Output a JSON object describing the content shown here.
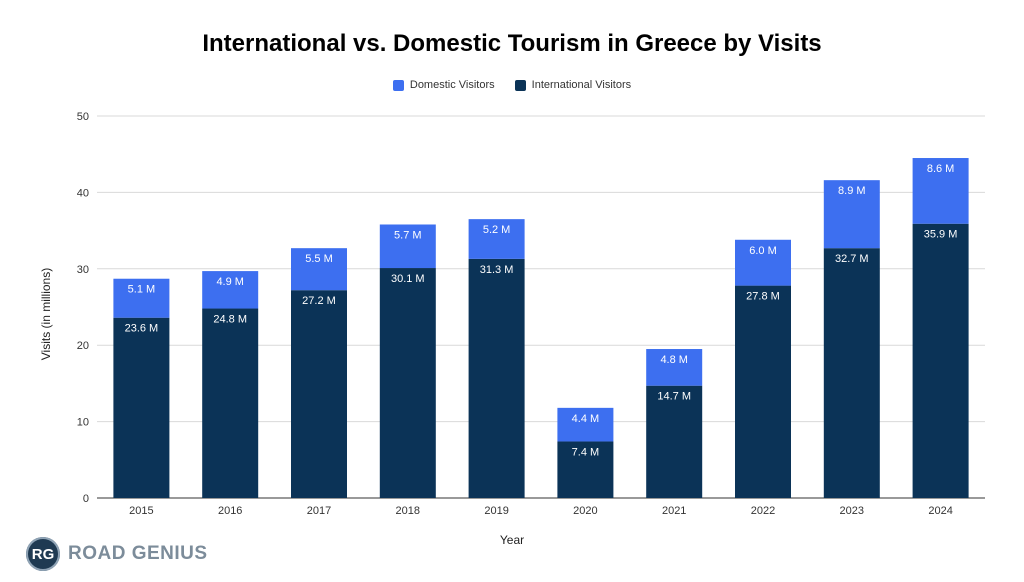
{
  "chart_data": {
    "type": "bar",
    "stacked": true,
    "title": "International vs. Domestic Tourism in Greece by Visits",
    "xlabel": "Year",
    "ylabel": "Visits (in millions)",
    "ylim": [
      0,
      50
    ],
    "yticks": [
      0,
      10,
      20,
      30,
      40,
      50
    ],
    "grid": true,
    "legend_placement": "top",
    "categories": [
      "2015",
      "2016",
      "2017",
      "2018",
      "2019",
      "2020",
      "2021",
      "2022",
      "2023",
      "2024"
    ],
    "series": [
      {
        "name": "International Visitors",
        "color": "#0b3357",
        "values": [
          23.6,
          24.8,
          27.2,
          30.1,
          31.3,
          7.4,
          14.7,
          27.8,
          32.7,
          35.9
        ],
        "labels": [
          "23.6 M",
          "24.8 M",
          "27.2 M",
          "30.1 M",
          "31.3 M",
          "7.4 M",
          "14.7 M",
          "27.8 M",
          "32.7 M",
          "35.9 M"
        ]
      },
      {
        "name": "Domestic Visitors",
        "color": "#3d6ff0",
        "values": [
          5.1,
          4.9,
          5.5,
          5.7,
          5.2,
          4.4,
          4.8,
          6.0,
          8.9,
          8.6
        ],
        "labels": [
          "5.1 M",
          "4.9 M",
          "5.5 M",
          "5.7 M",
          "5.2 M",
          "4.4 M",
          "4.8 M",
          "6.0 M",
          "8.9 M",
          "8.6 M"
        ]
      }
    ]
  },
  "legend": {
    "items": [
      {
        "label": "Domestic Visitors",
        "color": "#3d6ff0"
      },
      {
        "label": "International Visitors",
        "color": "#0b3357"
      }
    ]
  },
  "brand": {
    "badge": "RG",
    "name": "ROAD GENIUS"
  }
}
